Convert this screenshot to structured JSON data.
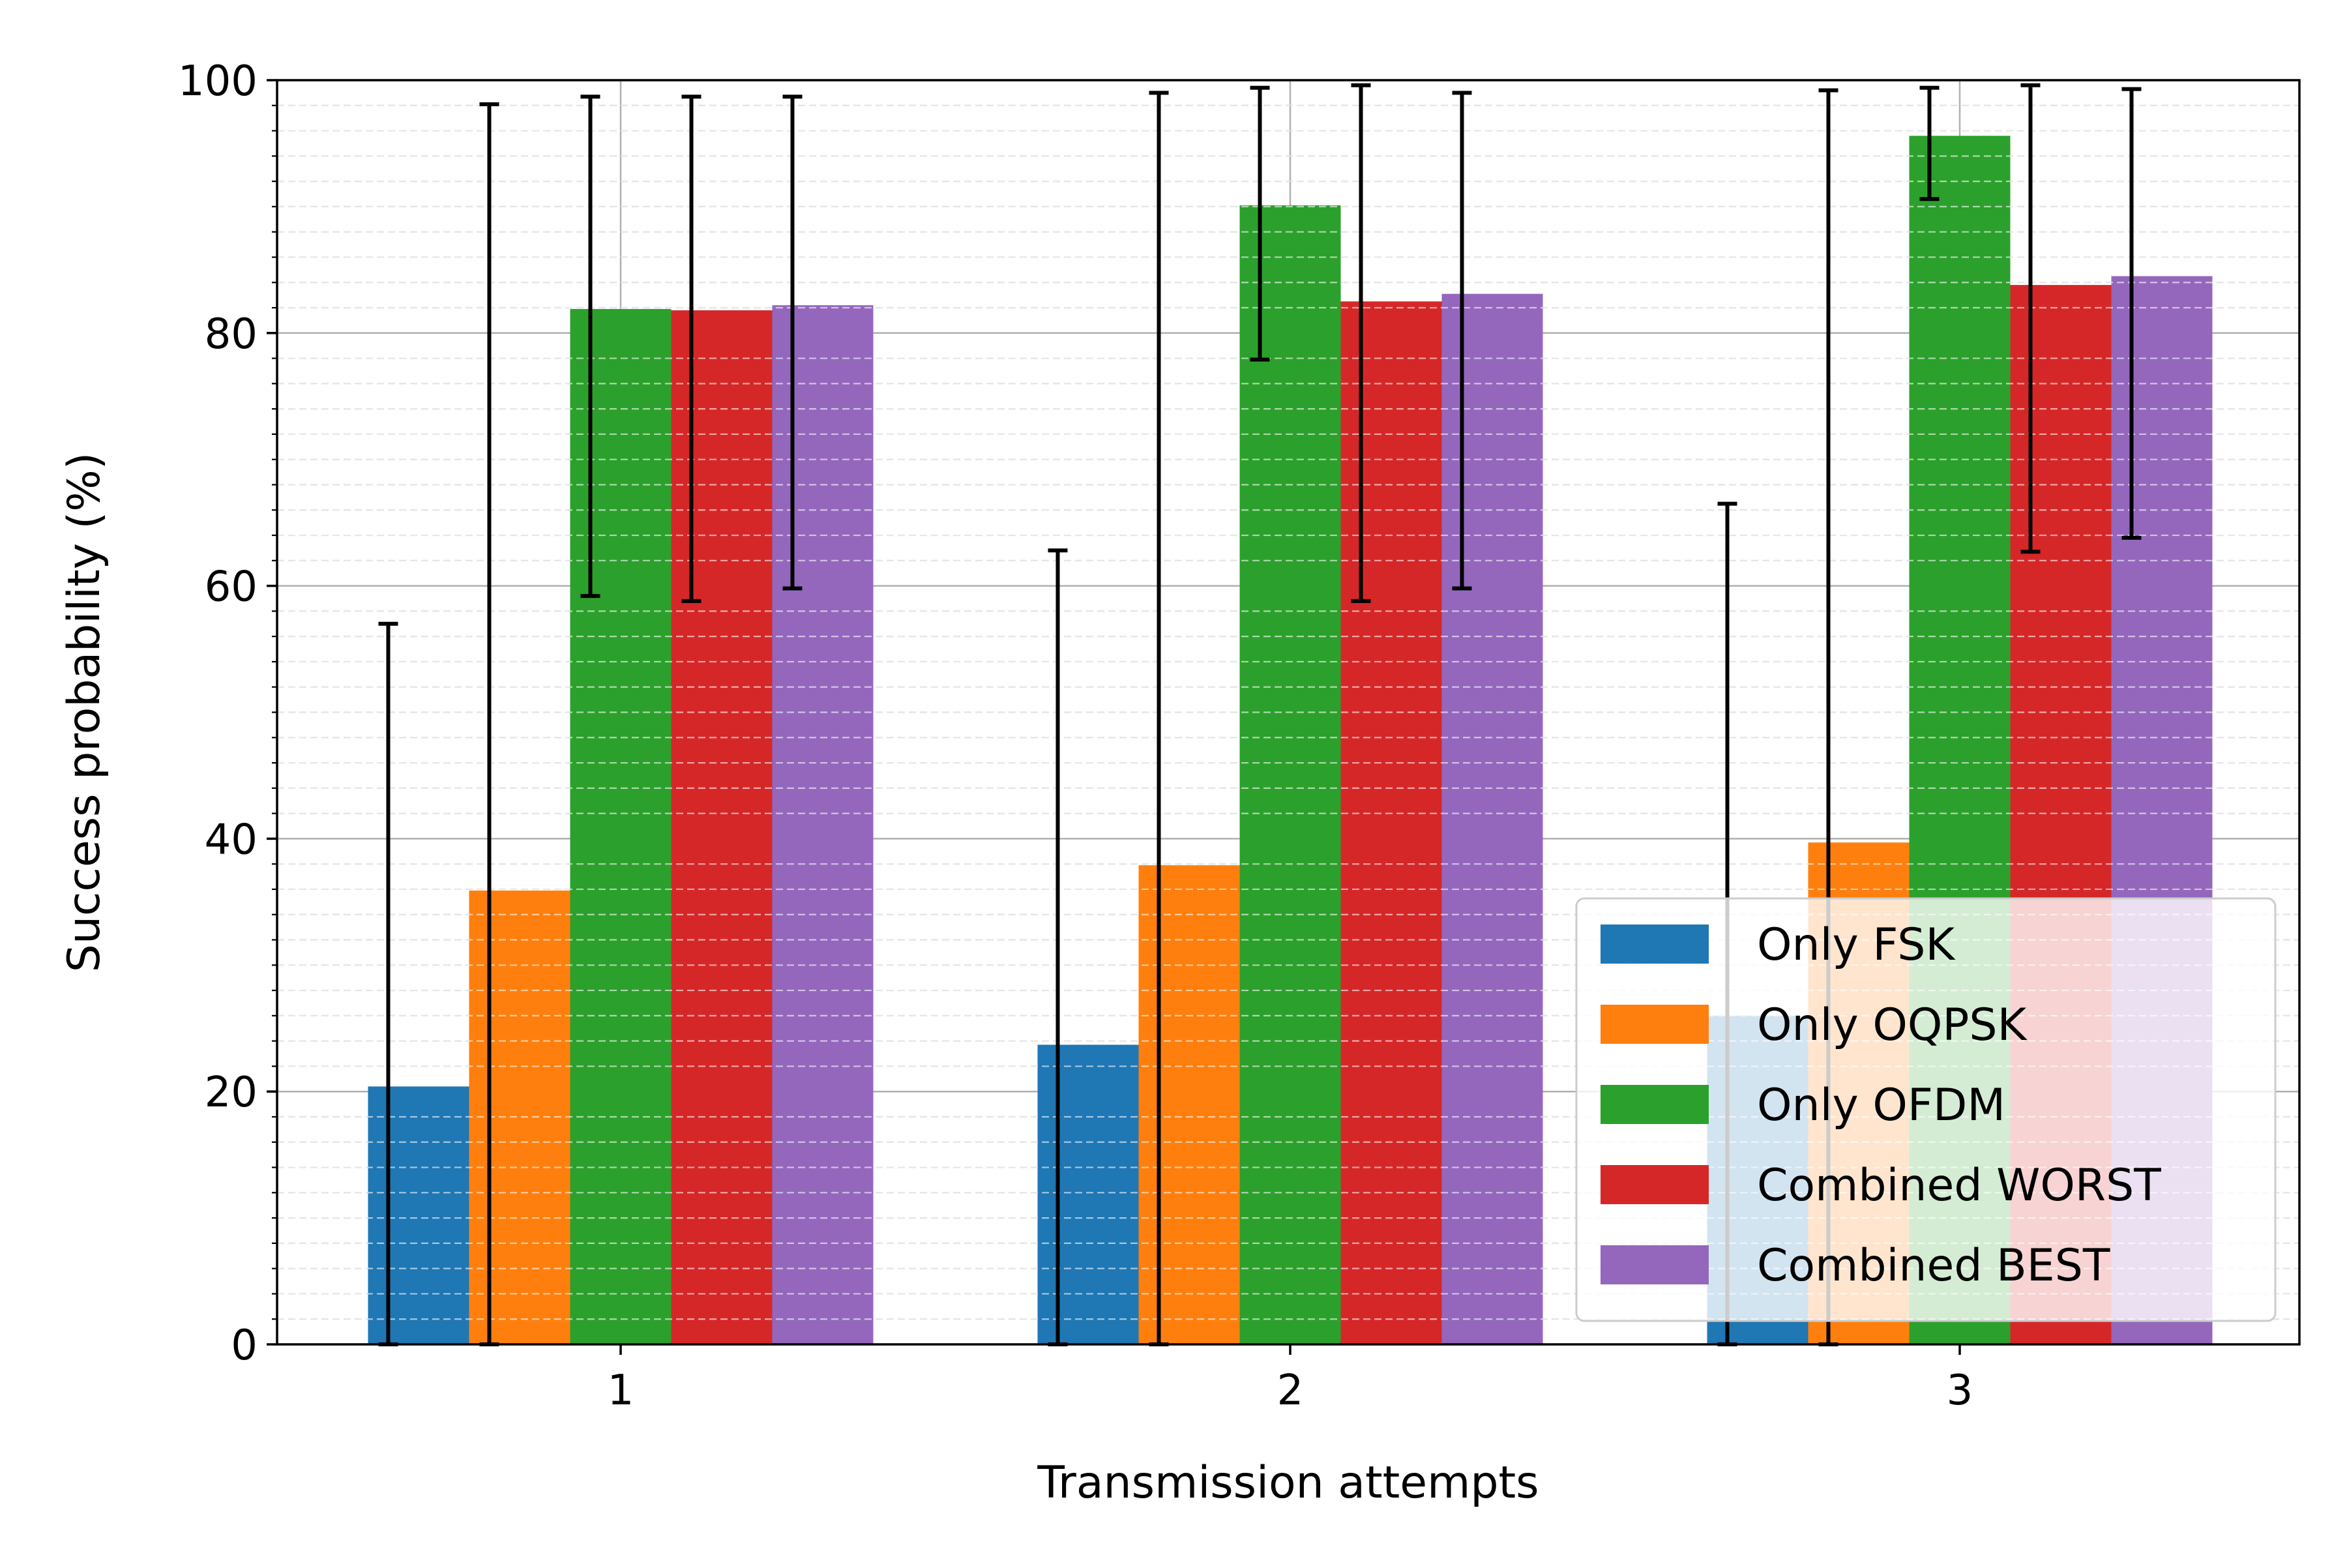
{
  "chart_data": {
    "type": "bar",
    "xlabel": "Transmission attempts",
    "ylabel": "Success probability (%)",
    "ylim": [
      0,
      100
    ],
    "yticks": [
      0,
      20,
      40,
      60,
      80,
      100
    ],
    "categories": [
      "1",
      "2",
      "3"
    ],
    "grid": {
      "major": true,
      "minor": true,
      "minor_style": "dashed"
    },
    "legend": {
      "placement": "lower-right"
    },
    "series": [
      {
        "name": "Only FSK",
        "color": "#1f77b4",
        "values": [
          20.4,
          23.7,
          26.0
        ],
        "error_lower": [
          0,
          0,
          0
        ],
        "error_upper": [
          57.0,
          62.8,
          66.5
        ]
      },
      {
        "name": "Only OQPSK",
        "color": "#ff7f0e",
        "values": [
          35.9,
          37.9,
          39.7
        ],
        "error_lower": [
          0,
          0,
          0
        ],
        "error_upper": [
          98.1,
          99.0,
          99.2
        ]
      },
      {
        "name": "Only OFDM",
        "color": "#2ca02c",
        "values": [
          81.9,
          90.1,
          95.6
        ],
        "error_lower": [
          59.2,
          77.9,
          90.6
        ],
        "error_upper": [
          98.7,
          99.4,
          99.4
        ]
      },
      {
        "name": "Combined WORST",
        "color": "#d62728",
        "values": [
          81.8,
          82.5,
          83.8
        ],
        "error_lower": [
          58.8,
          58.8,
          62.7
        ],
        "error_upper": [
          98.7,
          99.6,
          99.6
        ]
      },
      {
        "name": "Combined BEST",
        "color": "#9467bd",
        "values": [
          82.2,
          83.1,
          84.5
        ],
        "error_lower": [
          59.8,
          59.8,
          63.8
        ],
        "error_upper": [
          98.7,
          99.0,
          99.3
        ]
      }
    ]
  }
}
